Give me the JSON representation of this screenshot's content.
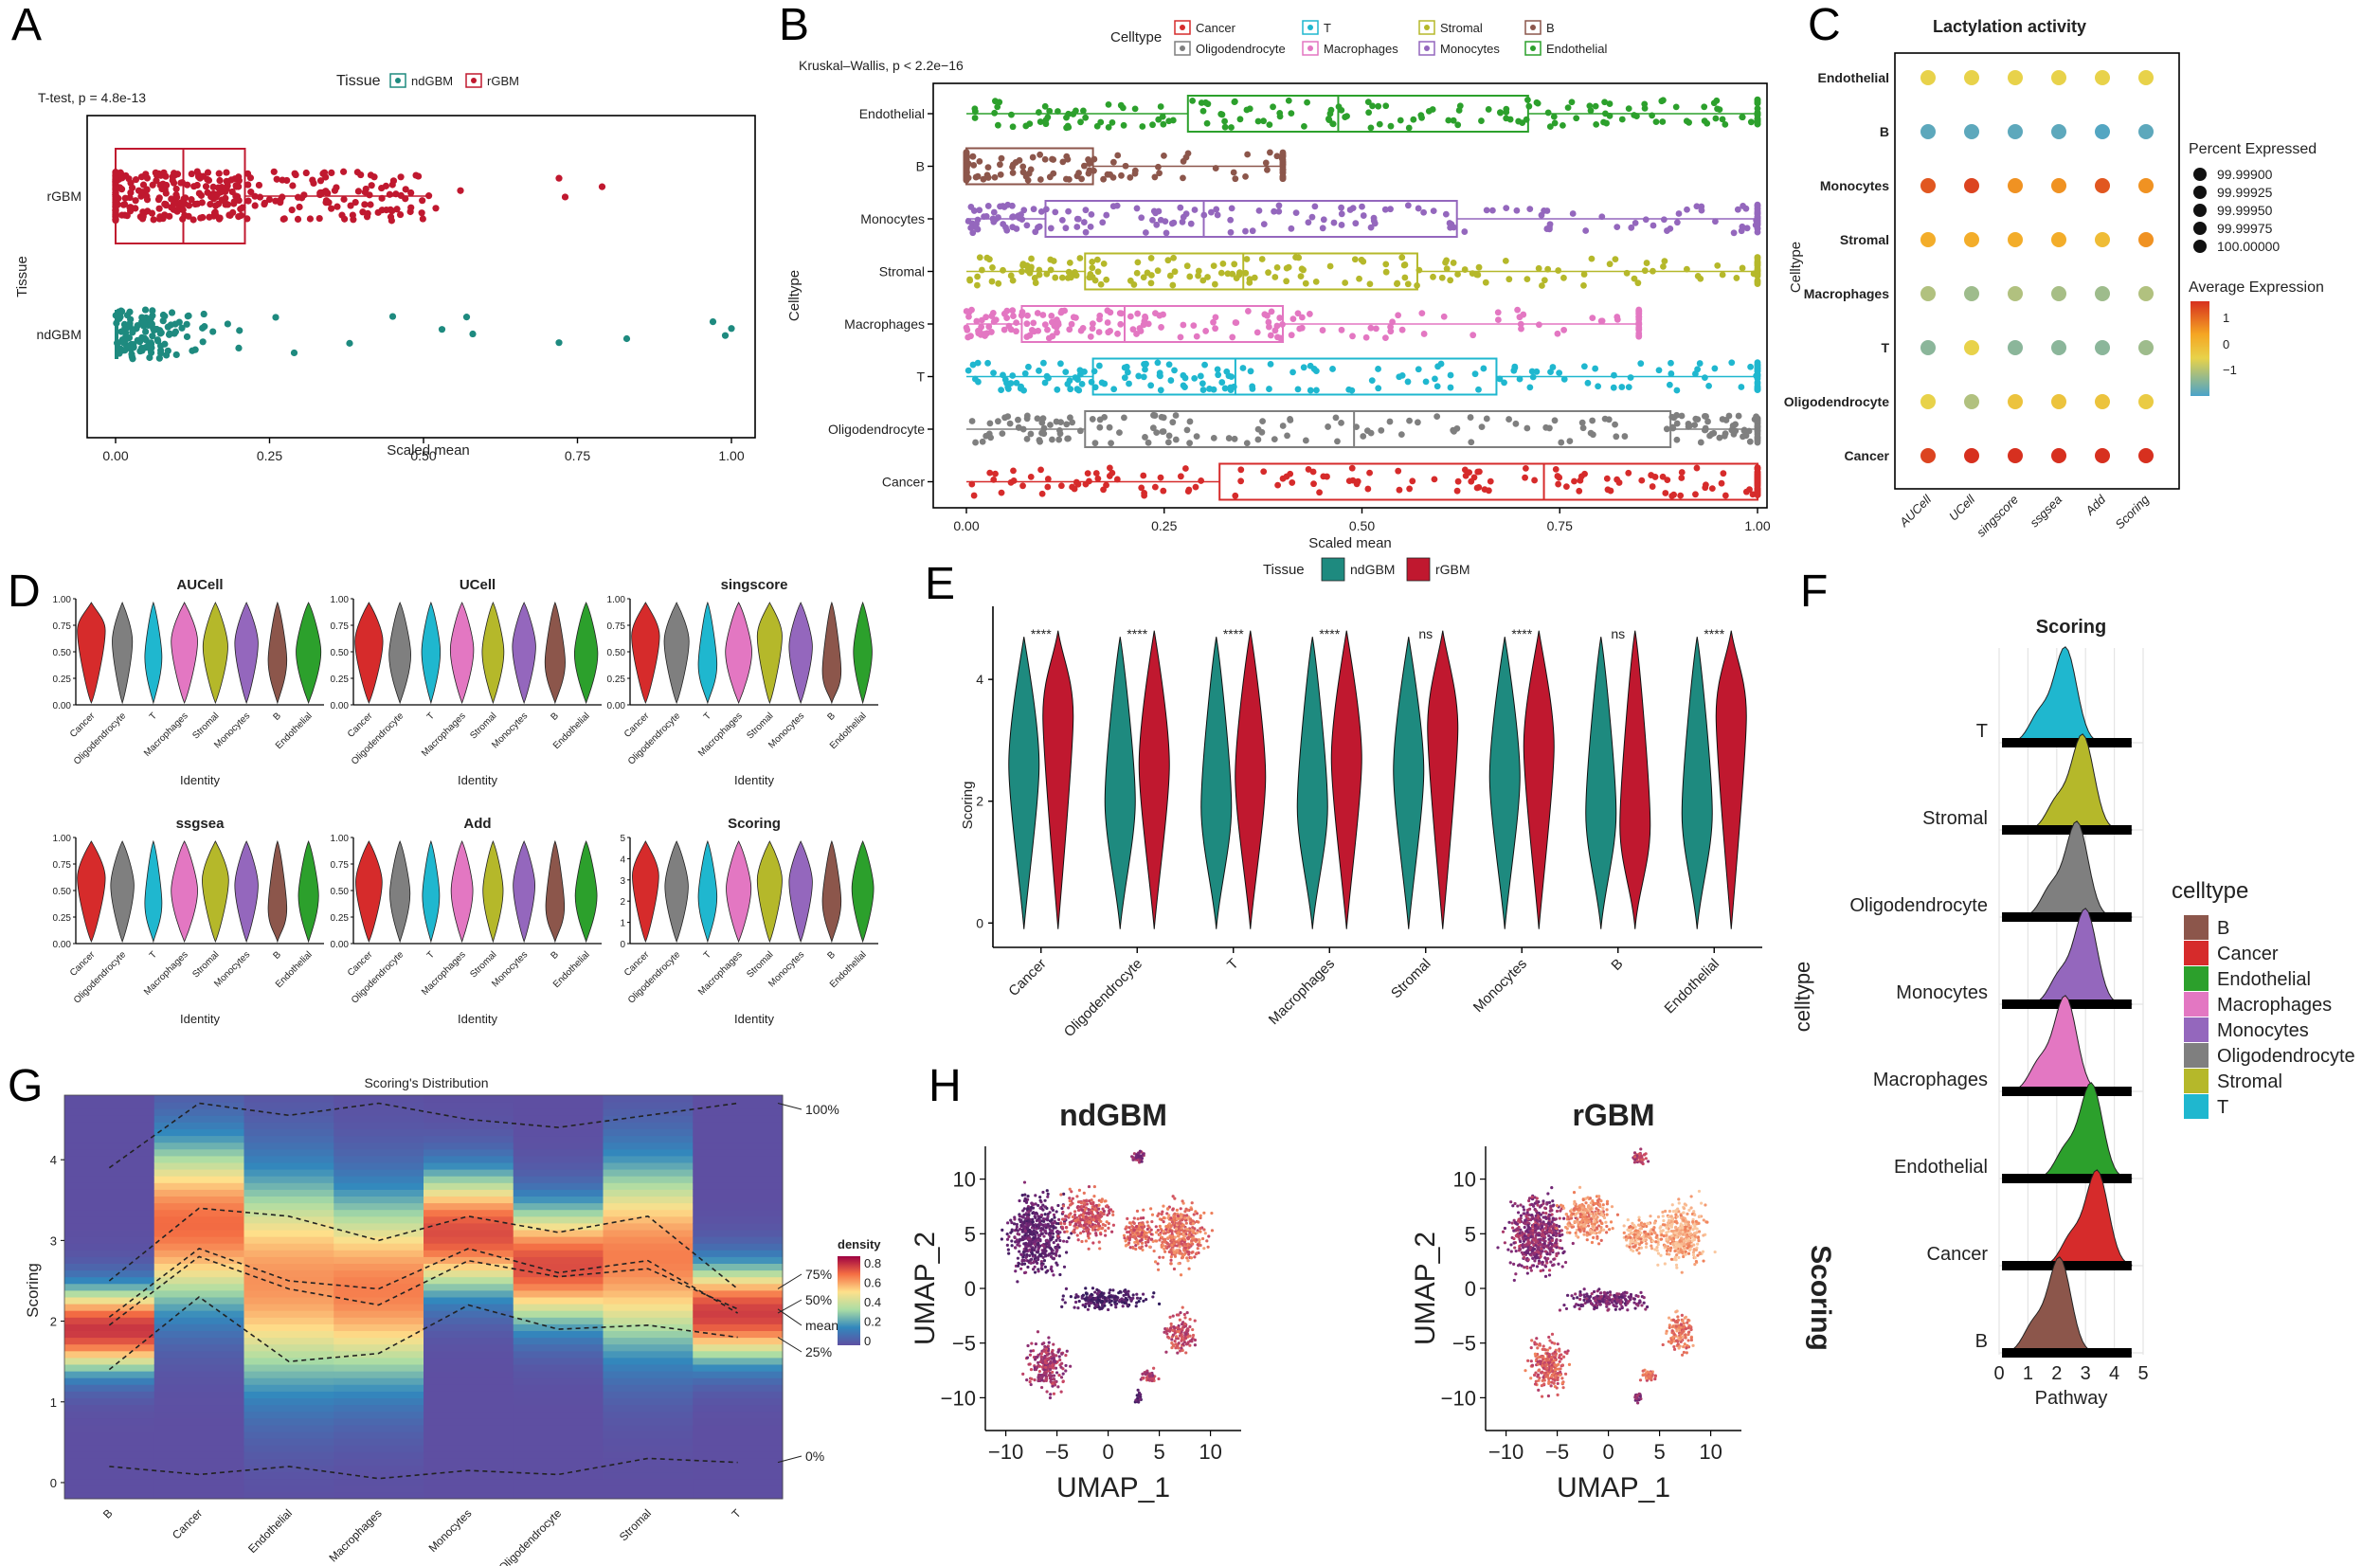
{
  "panel_letters": [
    "A",
    "B",
    "C",
    "D",
    "E",
    "F",
    "G",
    "H"
  ],
  "chart_data": [
    {
      "panel": "A",
      "type": "scatter",
      "subtype": "box + jitter, horizontal",
      "legend_title": "Tissue",
      "legend": [
        {
          "name": "ndGBM",
          "color": "#1e8a7f"
        },
        {
          "name": "rGBM",
          "color": "#c0182f"
        }
      ],
      "annotation": "T-test, p = 4.8e-13",
      "xlabel": "Scaled mean",
      "ylabel": "Tissue",
      "categories": [
        "rGBM",
        "ndGBM"
      ],
      "xlim": [
        0,
        1
      ],
      "xticks": [
        "0.00",
        "0.25",
        "0.50",
        "0.75",
        "1.00"
      ],
      "boxes": [
        {
          "name": "rGBM",
          "color": "#c0182f",
          "q1": 0.0,
          "median": 0.11,
          "q3": 0.21,
          "whisker_low": 0.0,
          "whisker_high": 0.51,
          "outliers": [
            0.52,
            0.56,
            0.72,
            0.73,
            0.79
          ]
        },
        {
          "name": "ndGBM",
          "color": "#1e8a7f",
          "q1": 0.0,
          "median": 0.0,
          "q3": 0.0,
          "whisker_low": 0.0,
          "whisker_high": 0.0,
          "outliers": [
            0.2,
            0.26,
            0.29,
            0.38,
            0.45,
            0.53,
            0.57,
            0.58,
            0.72,
            0.83,
            0.97,
            0.99,
            1.0
          ]
        }
      ]
    },
    {
      "panel": "B",
      "type": "scatter",
      "subtype": "box + jitter, horizontal",
      "legend_title": "Celltype",
      "legend": [
        {
          "name": "Cancer",
          "color": "#d62b2b"
        },
        {
          "name": "T",
          "color": "#1fb7cf"
        },
        {
          "name": "Stromal",
          "color": "#b5b82a"
        },
        {
          "name": "B",
          "color": "#8c564b"
        },
        {
          "name": "Oligodendrocyte",
          "color": "#7f7f7f"
        },
        {
          "name": "Macrophages",
          "color": "#e377c2"
        },
        {
          "name": "Monocytes",
          "color": "#9467bd"
        },
        {
          "name": "Endothelial",
          "color": "#2ca02c"
        }
      ],
      "annotation": "Kruskal–Wallis, p < 2.2e−16",
      "ylabel": "Celltype",
      "xlabel": "Scaled mean",
      "xlim": [
        0,
        1
      ],
      "xticks": [
        "0.00",
        "0.25",
        "0.50",
        "0.75",
        "1.00"
      ],
      "categories": [
        "Endothelial",
        "B",
        "Monocytes",
        "Stromal",
        "Macrophages",
        "T",
        "Oligodendrocyte",
        "Cancer"
      ],
      "boxes": [
        {
          "name": "Endothelial",
          "color": "#2ca02c",
          "q1": 0.28,
          "median": 0.47,
          "q3": 0.71,
          "whisker_high": 1.0
        },
        {
          "name": "B",
          "color": "#8c564b",
          "q1": 0.0,
          "median": 0.0,
          "q3": 0.16,
          "whisker_high": 0.4
        },
        {
          "name": "Monocytes",
          "color": "#9467bd",
          "q1": 0.1,
          "median": 0.3,
          "q3": 0.62,
          "whisker_high": 1.0
        },
        {
          "name": "Stromal",
          "color": "#b5b82a",
          "q1": 0.15,
          "median": 0.35,
          "q3": 0.57,
          "whisker_high": 1.0
        },
        {
          "name": "Macrophages",
          "color": "#e377c2",
          "q1": 0.07,
          "median": 0.2,
          "q3": 0.4,
          "whisker_high": 0.85
        },
        {
          "name": "T",
          "color": "#1fb7cf",
          "q1": 0.16,
          "median": 0.34,
          "q3": 0.67,
          "whisker_high": 1.0
        },
        {
          "name": "Oligodendrocyte",
          "color": "#7f7f7f",
          "q1": 0.15,
          "median": 0.49,
          "q3": 0.89,
          "whisker_high": 1.0
        },
        {
          "name": "Cancer",
          "color": "#d62b2b",
          "q1": 0.32,
          "median": 0.73,
          "q3": 1.0,
          "whisker_high": 1.0
        }
      ]
    },
    {
      "panel": "C",
      "type": "heatmap",
      "subtype": "dot plot",
      "title": "Lactylation activity",
      "ylabel": "Celltype",
      "columns": [
        "AUCell",
        "UCell",
        "singscore",
        "ssgsea",
        "Add",
        "Scoring"
      ],
      "rows": [
        "Endothelial",
        "B",
        "Monocytes",
        "Stromal",
        "Macrophages",
        "T",
        "Oligodendrocyte",
        "Cancer"
      ],
      "average_expression": [
        [
          0.3,
          0.3,
          0.3,
          0.3,
          0.3,
          0.3
        ],
        [
          -1.3,
          -1.3,
          -1.3,
          -1.3,
          -1.4,
          -1.3
        ],
        [
          1.3,
          1.4,
          1.0,
          1.0,
          1.3,
          1.0
        ],
        [
          0.8,
          0.8,
          0.8,
          0.8,
          0.6,
          1.0
        ],
        [
          -0.4,
          -0.6,
          -0.4,
          -0.5,
          -0.6,
          -0.4
        ],
        [
          -0.8,
          0.3,
          -0.8,
          -0.8,
          -0.8,
          -0.6
        ],
        [
          0.3,
          -0.4,
          0.5,
          0.5,
          0.5,
          0.4
        ],
        [
          1.4,
          1.6,
          1.5,
          1.5,
          1.5,
          1.5
        ]
      ],
      "size_legend_title": "Percent Expressed",
      "size_legend": [
        "99.99900",
        "99.99925",
        "99.99950",
        "99.99975",
        "100.00000"
      ],
      "color_legend_title": "Average Expression",
      "color_ticks": [
        "1",
        "0",
        "−1"
      ],
      "color_range": [
        -1.5,
        1.5
      ]
    },
    {
      "panel": "D",
      "type": "area",
      "subtype": "violin small multiples",
      "xlabel": "Identity",
      "categories": [
        "Cancer",
        "Oligodendrocyte",
        "T",
        "Macrophages",
        "Stromal",
        "Monocytes",
        "B",
        "Endothelial"
      ],
      "colors": [
        "#d62b2b",
        "#7f7f7f",
        "#1fb7cf",
        "#e377c2",
        "#b5b82a",
        "#9467bd",
        "#8c564b",
        "#2ca02c"
      ],
      "subplots": [
        {
          "title": "AUCell",
          "yticks": [
            "0.00",
            "0.25",
            "0.50",
            "0.75",
            "1.00"
          ],
          "ymax": 1,
          "width": [
            0.9,
            0.65,
            0.55,
            0.85,
            0.8,
            0.75,
            0.6,
            0.8
          ],
          "center": [
            0.7,
            0.6,
            0.45,
            0.6,
            0.55,
            0.58,
            0.42,
            0.5
          ]
        },
        {
          "title": "UCell",
          "yticks": [
            "0.00",
            "0.25",
            "0.50",
            "0.75",
            "1.00"
          ],
          "ymax": 1,
          "width": [
            0.9,
            0.7,
            0.6,
            0.75,
            0.7,
            0.75,
            0.65,
            0.75
          ],
          "center": [
            0.6,
            0.47,
            0.5,
            0.52,
            0.5,
            0.55,
            0.4,
            0.48
          ]
        },
        {
          "title": "singscore",
          "yticks": [
            "0.00",
            "0.25",
            "0.50",
            "0.75",
            "1.00"
          ],
          "ymax": 1,
          "width": [
            0.9,
            0.8,
            0.6,
            0.85,
            0.8,
            0.75,
            0.6,
            0.6
          ],
          "center": [
            0.65,
            0.6,
            0.38,
            0.5,
            0.65,
            0.55,
            0.32,
            0.5
          ]
        },
        {
          "title": "ssgsea",
          "yticks": [
            "0.00",
            "0.25",
            "0.50",
            "0.75",
            "1.00"
          ],
          "ymax": 1,
          "width": [
            0.9,
            0.75,
            0.55,
            0.85,
            0.85,
            0.75,
            0.6,
            0.65
          ],
          "center": [
            0.62,
            0.55,
            0.38,
            0.5,
            0.6,
            0.55,
            0.33,
            0.45
          ]
        },
        {
          "title": "Add",
          "yticks": [
            "0.00",
            "0.25",
            "0.50",
            "0.75",
            "1.00"
          ],
          "ymax": 1,
          "width": [
            0.85,
            0.65,
            0.55,
            0.7,
            0.65,
            0.7,
            0.6,
            0.7
          ],
          "center": [
            0.58,
            0.47,
            0.45,
            0.5,
            0.5,
            0.55,
            0.35,
            0.45
          ]
        },
        {
          "title": "Scoring",
          "yticks": [
            "0",
            "1",
            "2",
            "3",
            "4",
            "5"
          ],
          "ymax": 5,
          "width": [
            0.85,
            0.75,
            0.6,
            0.8,
            0.8,
            0.75,
            0.6,
            0.7
          ],
          "center": [
            3.2,
            2.7,
            2.2,
            2.6,
            3.0,
            2.9,
            2.0,
            2.6
          ]
        }
      ]
    },
    {
      "panel": "E",
      "type": "area",
      "subtype": "split violin",
      "legend_title": "Tissue",
      "legend": [
        {
          "name": "ndGBM",
          "color": "#1e8a7f"
        },
        {
          "name": "rGBM",
          "color": "#c0182f"
        }
      ],
      "ylabel": "Scoring",
      "yticks": [
        "0",
        "2",
        "4"
      ],
      "ylim": [
        -0.4,
        5.2
      ],
      "categories": [
        "Cancer",
        "Oligodendrocyte",
        "T",
        "Macrophages",
        "Stromal",
        "Monocytes",
        "B",
        "Endothelial"
      ],
      "significance": [
        "****",
        "****",
        "****",
        "****",
        "ns",
        "****",
        "ns",
        "****"
      ],
      "series": [
        {
          "name": "ndGBM",
          "medians": [
            2.6,
            2.0,
            1.9,
            1.9,
            2.5,
            2.4,
            1.8,
            1.8
          ]
        },
        {
          "name": "rGBM",
          "medians": [
            3.4,
            2.6,
            2.4,
            2.7,
            3.2,
            2.9,
            1.6,
            3.4
          ]
        }
      ]
    },
    {
      "panel": "F",
      "type": "area",
      "subtype": "ridgeline",
      "title": "Scoring",
      "xlabel": "Pathway",
      "ylabel": "celltype",
      "xticks": [
        "0",
        "1",
        "2",
        "3",
        "4",
        "5"
      ],
      "xlim": [
        0,
        5
      ],
      "categories": [
        "T",
        "Stromal",
        "Oligodendrocyte",
        "Monocytes",
        "Macrophages",
        "Endothelial",
        "Cancer",
        "B"
      ],
      "colors": [
        "#1fb7cf",
        "#b5b82a",
        "#7f7f7f",
        "#9467bd",
        "#e377c2",
        "#2ca02c",
        "#d62b2b",
        "#8c564b"
      ],
      "peaks": [
        2.3,
        2.9,
        2.7,
        3.0,
        2.3,
        3.2,
        3.4,
        2.1
      ],
      "legend_title": "celltype",
      "legend": [
        {
          "name": "B",
          "color": "#8c564b"
        },
        {
          "name": "Cancer",
          "color": "#d62b2b"
        },
        {
          "name": "Endothelial",
          "color": "#2ca02c"
        },
        {
          "name": "Macrophages",
          "color": "#e377c2"
        },
        {
          "name": "Monocytes",
          "color": "#9467bd"
        },
        {
          "name": "Oligodendrocyte",
          "color": "#7f7f7f"
        },
        {
          "name": "Stromal",
          "color": "#b5b82a"
        },
        {
          "name": "T",
          "color": "#1fb7cf"
        }
      ]
    },
    {
      "panel": "G",
      "type": "heatmap",
      "subtype": "density strips with quantile lines",
      "title": "Scoring's Distribution",
      "ylabel": "Scoring",
      "yticks": [
        "0",
        "1",
        "2",
        "3",
        "4"
      ],
      "ylim": [
        -0.2,
        4.8
      ],
      "categories": [
        "B",
        "Cancer",
        "Endothelial",
        "Macrophages",
        "Monocytes",
        "Oligodendrocyte",
        "Stromal",
        "T"
      ],
      "density_peak": [
        1.9,
        3.2,
        2.5,
        2.4,
        3.1,
        2.7,
        2.8,
        2.1
      ],
      "density_spread": [
        0.35,
        0.7,
        0.9,
        0.8,
        0.5,
        0.5,
        0.8,
        0.4
      ],
      "quantiles": {
        "100%": [
          3.9,
          4.7,
          4.55,
          4.7,
          4.5,
          4.4,
          4.55,
          4.7
        ],
        "75%": [
          2.5,
          3.4,
          3.3,
          3.0,
          3.3,
          3.1,
          3.3,
          2.4
        ],
        "50%": [
          2.05,
          2.9,
          2.5,
          2.4,
          2.9,
          2.6,
          2.75,
          2.1
        ],
        "mean": [
          1.95,
          2.8,
          2.4,
          2.2,
          2.75,
          2.55,
          2.65,
          2.15
        ],
        "25%": [
          1.4,
          2.3,
          1.5,
          1.6,
          2.2,
          1.9,
          1.95,
          1.8
        ],
        "0%": [
          0.2,
          0.1,
          0.2,
          0.05,
          0.15,
          0.1,
          0.3,
          0.25
        ]
      },
      "quantile_labels": [
        "100%",
        "75%",
        "50%",
        "mean",
        "25%",
        "0%"
      ],
      "colorbar_title": "density",
      "colorbar_ticks": [
        "0.8",
        "0.6",
        "0.4",
        "0.2",
        "0"
      ],
      "colorbar_range": [
        0,
        0.85
      ]
    },
    {
      "panel": "H",
      "type": "scatter",
      "subtype": "UMAP embeddings",
      "plots": [
        {
          "title": "ndGBM"
        },
        {
          "title": "rGBM"
        }
      ],
      "xlabel": "UMAP_1",
      "ylabel": "UMAP_2",
      "xticks": [
        "−10",
        "−5",
        "0",
        "5",
        "10"
      ],
      "yticks": [
        "10",
        "5",
        "0",
        "−5",
        "−10"
      ],
      "xlim": [
        -12,
        13
      ],
      "ylim": [
        -13,
        13
      ],
      "side_label": "Scoring"
    }
  ]
}
